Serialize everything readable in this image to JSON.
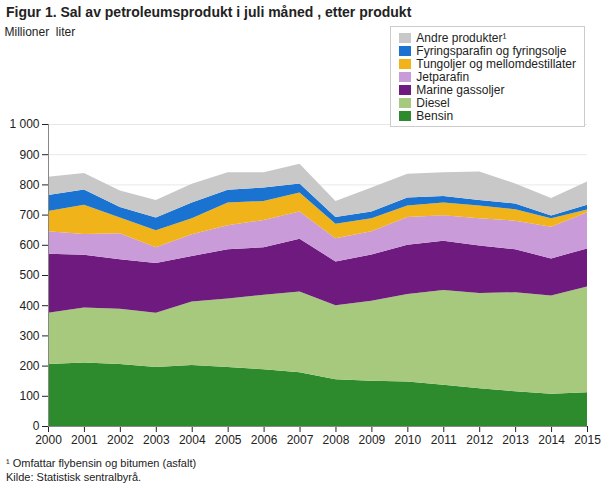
{
  "chart_data": {
    "type": "area",
    "stacked": true,
    "title": "Figur 1. Sal av petroleumsprodukt i juli måned , etter produkt",
    "y_label": "Millioner  liter",
    "notes": [
      "¹ Omfattar flybensin og bitumen (asfalt)",
      "Kilde: Statistisk sentralbyrå."
    ],
    "x": [
      2000,
      2001,
      2002,
      2003,
      2004,
      2005,
      2006,
      2007,
      2008,
      2009,
      2010,
      2011,
      2012,
      2013,
      2014,
      2015
    ],
    "xlim": [
      2000,
      2015
    ],
    "xticks": [
      2000,
      2001,
      2002,
      2003,
      2004,
      2005,
      2006,
      2007,
      2008,
      2009,
      2010,
      2011,
      2012,
      2013,
      2014,
      2015
    ],
    "ylim": [
      0,
      1000
    ],
    "yticks": [
      0,
      100,
      200,
      300,
      400,
      500,
      600,
      700,
      800,
      900,
      {
        "value": 1000,
        "label": "1 000"
      }
    ],
    "grid": true,
    "legend": "top-right",
    "series": [
      {
        "name": "Bensin",
        "color": "#2d8a2d",
        "values": [
          205,
          210,
          205,
          195,
          202,
          195,
          188,
          178,
          155,
          150,
          147,
          137,
          125,
          115,
          107,
          112
        ]
      },
      {
        "name": "Diesel",
        "color": "#a6c97e",
        "values": [
          170,
          182,
          183,
          180,
          210,
          227,
          247,
          267,
          245,
          265,
          290,
          313,
          315,
          328,
          325,
          350
        ]
      },
      {
        "name": "Marine gassoljer",
        "color": "#6e1a7e",
        "values": [
          195,
          175,
          164,
          165,
          151,
          163,
          157,
          175,
          145,
          153,
          163,
          163,
          158,
          142,
          123,
          126
        ]
      },
      {
        "name": "Jetparafin",
        "color": "#c99bd8",
        "values": [
          75,
          69,
          86,
          52,
          72,
          80,
          90,
          90,
          77,
          77,
          92,
          85,
          90,
          95,
          105,
          120
        ]
      },
      {
        "name": "Tungoljer og mellomdestillater",
        "color": "#f0b31a",
        "values": [
          67,
          97,
          52,
          56,
          53,
          75,
          63,
          63,
          48,
          43,
          38,
          42,
          42,
          38,
          28,
          9
        ]
      },
      {
        "name": "Fyringsparafin og fyringsolje",
        "color": "#1a73d1",
        "values": [
          53,
          50,
          35,
          42,
          52,
          42,
          45,
          30,
          22,
          22,
          27,
          22,
          18,
          19,
          9,
          16
        ]
      },
      {
        "name": "Andre produkter¹",
        "color": "#c8c8c8",
        "values": [
          60,
          55,
          55,
          58,
          62,
          58,
          50,
          65,
          53,
          80,
          78,
          78,
          95,
          66,
          58,
          77
        ]
      }
    ]
  }
}
